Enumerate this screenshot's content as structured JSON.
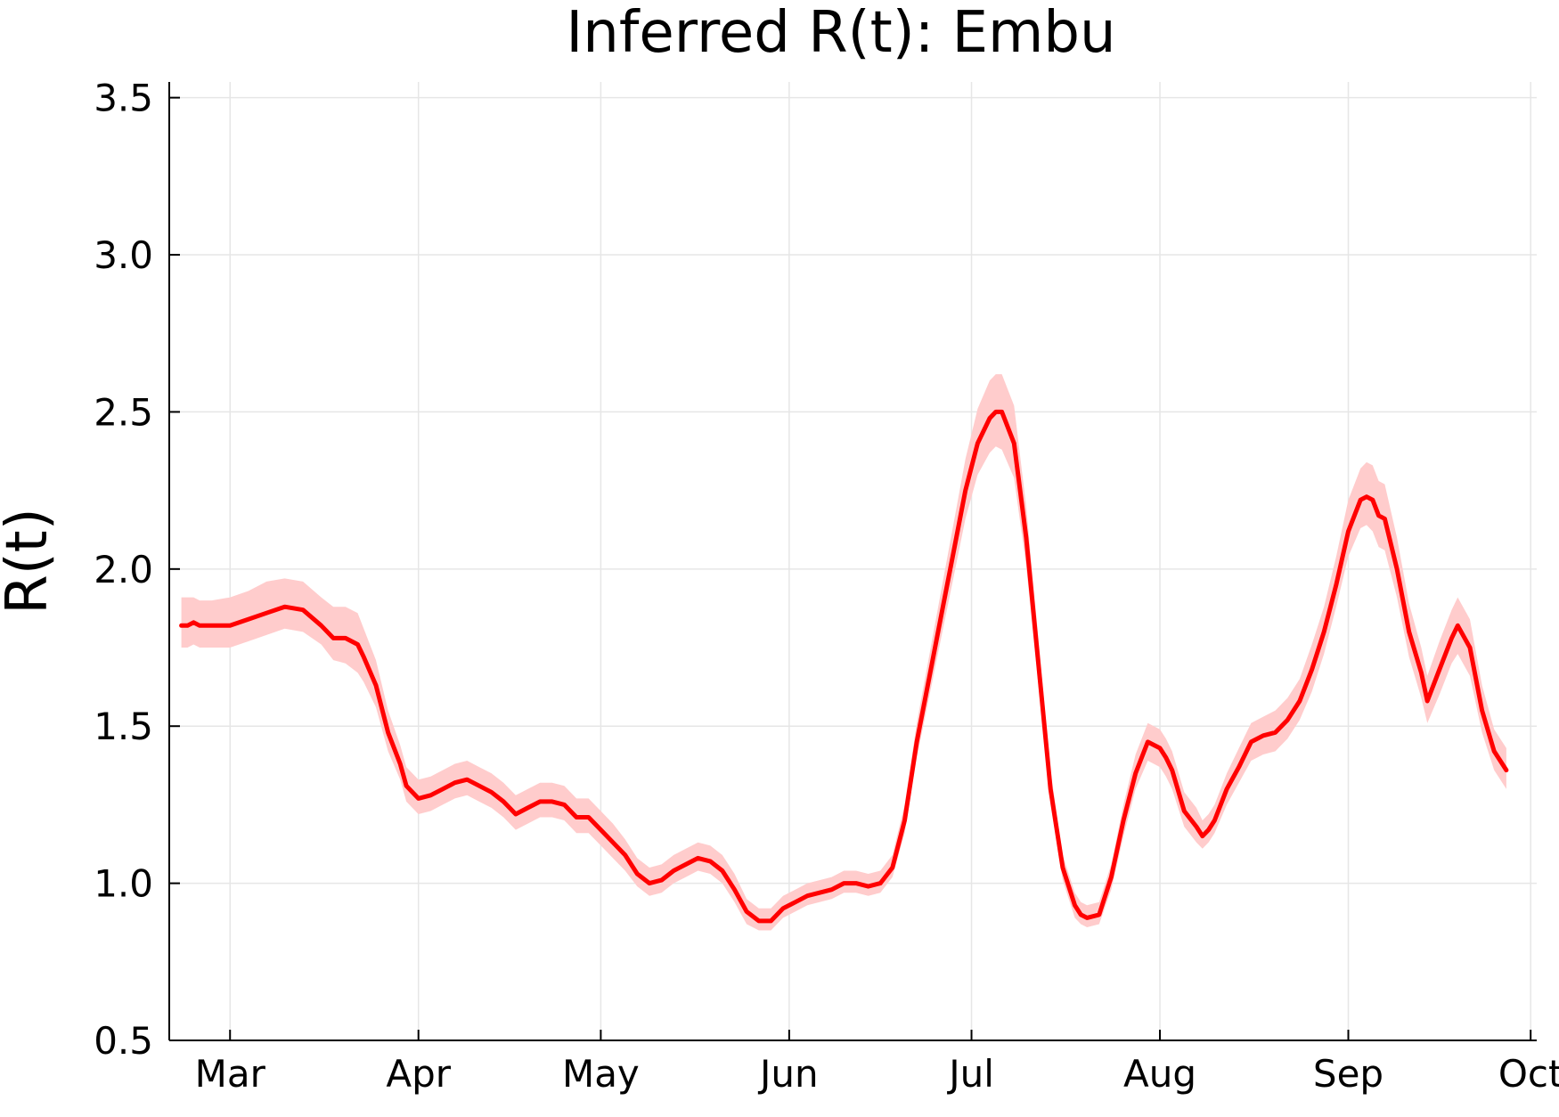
{
  "chart_data": {
    "type": "line",
    "title": "Inferred R(t): Embu",
    "xlabel": "",
    "ylabel": "R(t)",
    "ylim": [
      0.5,
      3.55
    ],
    "yticks": [
      0.5,
      1.0,
      1.5,
      2.0,
      2.5,
      3.0,
      3.5
    ],
    "ytick_labels": [
      "0.5",
      "1.0",
      "1.5",
      "2.0",
      "2.5",
      "3.0",
      "3.5"
    ],
    "xlim": [
      "2020-02-20",
      "2020-10-02"
    ],
    "xticks": [
      "2020-03-01",
      "2020-04-01",
      "2020-05-01",
      "2020-06-01",
      "2020-07-01",
      "2020-08-01",
      "2020-09-01",
      "2020-10-01"
    ],
    "xtick_labels": [
      "Mar",
      "Apr",
      "May",
      "Jun",
      "Jul",
      "Aug",
      "Sep",
      "Oct"
    ],
    "grid": true,
    "legend": "none",
    "colors": {
      "line": "#ff0000",
      "band": "#ffcccc",
      "grid": "#e6e6e6",
      "axis": "#000000"
    },
    "series": [
      {
        "x": [
          "2020-02-22",
          "2020-02-23",
          "2020-02-24",
          "2020-02-25",
          "2020-02-27",
          "2020-03-01",
          "2020-03-04",
          "2020-03-07",
          "2020-03-10",
          "2020-03-13",
          "2020-03-16",
          "2020-03-18",
          "2020-03-20",
          "2020-03-22",
          "2020-03-23",
          "2020-03-25",
          "2020-03-27",
          "2020-03-29",
          "2020-03-30",
          "2020-04-01",
          "2020-04-03",
          "2020-04-05",
          "2020-04-07",
          "2020-04-09",
          "2020-04-11",
          "2020-04-13",
          "2020-04-15",
          "2020-04-17",
          "2020-04-19",
          "2020-04-21",
          "2020-04-23",
          "2020-04-25",
          "2020-04-27",
          "2020-04-29",
          "2020-05-01",
          "2020-05-03",
          "2020-05-05",
          "2020-05-07",
          "2020-05-09",
          "2020-05-11",
          "2020-05-13",
          "2020-05-15",
          "2020-05-17",
          "2020-05-19",
          "2020-05-21",
          "2020-05-23",
          "2020-05-25",
          "2020-05-27",
          "2020-05-29",
          "2020-05-31",
          "2020-06-02",
          "2020-06-04",
          "2020-06-06",
          "2020-06-08",
          "2020-06-10",
          "2020-06-12",
          "2020-06-14",
          "2020-06-16",
          "2020-06-18",
          "2020-06-20",
          "2020-06-22",
          "2020-06-24",
          "2020-06-26",
          "2020-06-28",
          "2020-06-30",
          "2020-07-02",
          "2020-07-04",
          "2020-07-05",
          "2020-07-06",
          "2020-07-08",
          "2020-07-10",
          "2020-07-12",
          "2020-07-14",
          "2020-07-16",
          "2020-07-18",
          "2020-07-19",
          "2020-07-20",
          "2020-07-22",
          "2020-07-24",
          "2020-07-26",
          "2020-07-28",
          "2020-07-30",
          "2020-08-01",
          "2020-08-02",
          "2020-08-03",
          "2020-08-05",
          "2020-08-07",
          "2020-08-08",
          "2020-08-09",
          "2020-08-10",
          "2020-08-12",
          "2020-08-14",
          "2020-08-16",
          "2020-08-18",
          "2020-08-20",
          "2020-08-22",
          "2020-08-24",
          "2020-08-26",
          "2020-08-28",
          "2020-08-30",
          "2020-09-01",
          "2020-09-03",
          "2020-09-04",
          "2020-09-05",
          "2020-09-06",
          "2020-09-07",
          "2020-09-09",
          "2020-09-11",
          "2020-09-13",
          "2020-09-14",
          "2020-09-16",
          "2020-09-18",
          "2020-09-19",
          "2020-09-21",
          "2020-09-23",
          "2020-09-25",
          "2020-09-27"
        ],
        "values": [
          1.82,
          1.82,
          1.83,
          1.82,
          1.82,
          1.82,
          1.84,
          1.86,
          1.88,
          1.87,
          1.82,
          1.78,
          1.78,
          1.76,
          1.72,
          1.63,
          1.48,
          1.38,
          1.31,
          1.27,
          1.28,
          1.3,
          1.32,
          1.33,
          1.31,
          1.29,
          1.26,
          1.22,
          1.24,
          1.26,
          1.26,
          1.25,
          1.21,
          1.21,
          1.17,
          1.13,
          1.09,
          1.03,
          1.0,
          1.01,
          1.04,
          1.06,
          1.08,
          1.07,
          1.04,
          0.98,
          0.91,
          0.88,
          0.88,
          0.92,
          0.94,
          0.96,
          0.97,
          0.98,
          1.0,
          1.0,
          0.99,
          1.0,
          1.05,
          1.2,
          1.45,
          1.65,
          1.85,
          2.05,
          2.25,
          2.4,
          2.48,
          2.5,
          2.5,
          2.4,
          2.1,
          1.7,
          1.3,
          1.05,
          0.93,
          0.9,
          0.89,
          0.9,
          1.02,
          1.2,
          1.35,
          1.45,
          1.43,
          1.4,
          1.36,
          1.23,
          1.18,
          1.15,
          1.17,
          1.2,
          1.3,
          1.37,
          1.45,
          1.47,
          1.48,
          1.52,
          1.58,
          1.68,
          1.8,
          1.95,
          2.12,
          2.22,
          2.23,
          2.22,
          2.17,
          2.16,
          2.0,
          1.8,
          1.67,
          1.58,
          1.68,
          1.78,
          1.82,
          1.75,
          1.55,
          1.42,
          1.36
        ],
        "lower": [
          1.75,
          1.75,
          1.76,
          1.75,
          1.75,
          1.75,
          1.77,
          1.79,
          1.81,
          1.8,
          1.76,
          1.71,
          1.7,
          1.67,
          1.64,
          1.56,
          1.42,
          1.33,
          1.26,
          1.22,
          1.23,
          1.25,
          1.27,
          1.28,
          1.26,
          1.24,
          1.21,
          1.17,
          1.19,
          1.21,
          1.21,
          1.2,
          1.16,
          1.16,
          1.12,
          1.08,
          1.04,
          0.99,
          0.96,
          0.97,
          1.0,
          1.02,
          1.04,
          1.03,
          1.0,
          0.94,
          0.87,
          0.85,
          0.85,
          0.89,
          0.91,
          0.93,
          0.94,
          0.95,
          0.97,
          0.97,
          0.96,
          0.97,
          1.02,
          1.16,
          1.4,
          1.59,
          1.78,
          1.97,
          2.16,
          2.3,
          2.37,
          2.39,
          2.38,
          2.29,
          2.01,
          1.63,
          1.25,
          1.01,
          0.89,
          0.87,
          0.86,
          0.87,
          0.98,
          1.15,
          1.3,
          1.39,
          1.37,
          1.34,
          1.3,
          1.18,
          1.13,
          1.11,
          1.13,
          1.16,
          1.25,
          1.32,
          1.39,
          1.41,
          1.42,
          1.46,
          1.52,
          1.61,
          1.73,
          1.88,
          2.04,
          2.13,
          2.14,
          2.12,
          2.07,
          2.06,
          1.91,
          1.72,
          1.59,
          1.51,
          1.6,
          1.7,
          1.73,
          1.66,
          1.48,
          1.36,
          1.3
        ],
        "upper": [
          1.91,
          1.91,
          1.91,
          1.9,
          1.9,
          1.91,
          1.93,
          1.96,
          1.97,
          1.96,
          1.91,
          1.88,
          1.88,
          1.86,
          1.81,
          1.71,
          1.55,
          1.44,
          1.37,
          1.33,
          1.34,
          1.36,
          1.38,
          1.39,
          1.37,
          1.35,
          1.32,
          1.28,
          1.3,
          1.32,
          1.32,
          1.31,
          1.27,
          1.27,
          1.23,
          1.19,
          1.14,
          1.08,
          1.05,
          1.06,
          1.09,
          1.11,
          1.13,
          1.12,
          1.09,
          1.03,
          0.95,
          0.92,
          0.92,
          0.96,
          0.98,
          1.0,
          1.01,
          1.02,
          1.04,
          1.04,
          1.03,
          1.04,
          1.09,
          1.25,
          1.51,
          1.72,
          1.93,
          2.14,
          2.35,
          2.51,
          2.6,
          2.62,
          2.62,
          2.52,
          2.2,
          1.78,
          1.36,
          1.09,
          0.97,
          0.94,
          0.93,
          0.94,
          1.06,
          1.25,
          1.41,
          1.51,
          1.49,
          1.46,
          1.42,
          1.29,
          1.24,
          1.2,
          1.22,
          1.25,
          1.35,
          1.43,
          1.51,
          1.53,
          1.55,
          1.59,
          1.65,
          1.76,
          1.88,
          2.04,
          2.22,
          2.32,
          2.34,
          2.33,
          2.28,
          2.27,
          2.1,
          1.89,
          1.75,
          1.66,
          1.77,
          1.87,
          1.91,
          1.84,
          1.63,
          1.49,
          1.43
        ]
      }
    ]
  }
}
